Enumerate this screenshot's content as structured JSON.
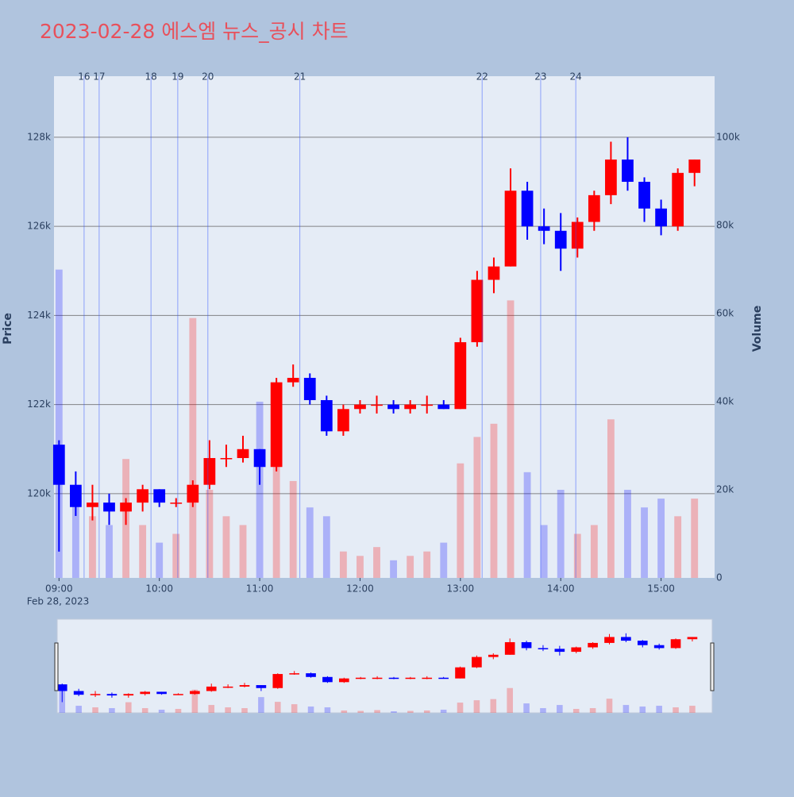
{
  "chart_data": {
    "type": "candlestick",
    "title": "2023-02-28 에스엠 뉴스_공시 차트",
    "y_label": "Price",
    "y2_label": "Volume",
    "x_date_label": "Feb 28, 2023",
    "increasing_color": "#ff0000",
    "decreasing_color": "#0000ff",
    "grid": true,
    "range_slider": true,
    "x": [
      "09:00",
      "09:10",
      "09:20",
      "09:30",
      "09:40",
      "09:50",
      "10:00",
      "10:10",
      "10:20",
      "10:30",
      "10:40",
      "10:50",
      "11:00",
      "11:10",
      "11:20",
      "11:30",
      "11:40",
      "11:50",
      "12:00",
      "12:10",
      "12:20",
      "12:30",
      "12:40",
      "12:50",
      "13:00",
      "13:10",
      "13:20",
      "13:30",
      "13:40",
      "13:50",
      "14:00",
      "14:10",
      "14:20",
      "14:30",
      "14:40",
      "14:50",
      "15:00",
      "15:10",
      "15:20"
    ],
    "open": [
      121100,
      120200,
      119700,
      119800,
      119600,
      119800,
      120100,
      119800,
      119800,
      120200,
      120800,
      120800,
      121000,
      120600,
      122500,
      122600,
      122100,
      121400,
      121900,
      122000,
      122000,
      121900,
      122000,
      122000,
      121900,
      123400,
      124800,
      125100,
      126800,
      126000,
      125900,
      125500,
      126100,
      126700,
      127500,
      127000,
      126400,
      126000,
      127200
    ],
    "high": [
      121200,
      120500,
      120200,
      120000,
      119900,
      120200,
      120100,
      119900,
      120300,
      121200,
      121100,
      121300,
      121000,
      122600,
      122900,
      122700,
      122200,
      122000,
      122100,
      122200,
      122100,
      122100,
      122200,
      122100,
      123500,
      125000,
      125300,
      127300,
      127000,
      126400,
      126300,
      126200,
      126800,
      127900,
      128000,
      127100,
      126600,
      127300,
      127500
    ],
    "low": [
      118700,
      119500,
      119400,
      119300,
      119300,
      119600,
      119700,
      119700,
      119700,
      120100,
      120600,
      120700,
      120200,
      120500,
      122400,
      122000,
      121300,
      121300,
      121800,
      121800,
      121800,
      121800,
      121800,
      121900,
      121900,
      123300,
      124500,
      125100,
      125700,
      125600,
      125000,
      125300,
      125900,
      126500,
      126800,
      126100,
      125800,
      125900,
      126900
    ],
    "close": [
      120200,
      119700,
      119800,
      119600,
      119800,
      120100,
      119800,
      119800,
      120200,
      120800,
      120800,
      121000,
      120600,
      122500,
      122600,
      122100,
      121400,
      121900,
      122000,
      122000,
      121900,
      122000,
      122000,
      121900,
      123400,
      124800,
      125100,
      126800,
      126000,
      125900,
      125500,
      126100,
      126700,
      127500,
      127000,
      126400,
      126000,
      127200,
      127500
    ],
    "volume": [
      70000,
      18000,
      14000,
      12000,
      27000,
      12000,
      8000,
      10000,
      59000,
      20000,
      14000,
      12000,
      40000,
      28000,
      22000,
      16000,
      14000,
      6000,
      5000,
      7000,
      4000,
      5000,
      6000,
      8000,
      26000,
      32000,
      35000,
      63000,
      24000,
      12000,
      20000,
      10000,
      12000,
      36000,
      20000,
      16000,
      18000,
      14000,
      18000
    ],
    "events": [
      {
        "label": "16",
        "x": "09:15"
      },
      {
        "label": "17",
        "x": "09:24"
      },
      {
        "label": "18",
        "x": "09:55"
      },
      {
        "label": "19",
        "x": "10:11"
      },
      {
        "label": "20",
        "x": "10:29"
      },
      {
        "label": "21",
        "x": "11:24"
      },
      {
        "label": "22",
        "x": "13:13"
      },
      {
        "label": "23",
        "x": "13:48"
      },
      {
        "label": "24",
        "x": "14:09"
      }
    ],
    "xlim": [
      "08:57",
      "15:32"
    ],
    "xticks": [
      "09:00",
      "10:00",
      "11:00",
      "12:00",
      "13:00",
      "14:00",
      "15:00"
    ],
    "ylim": [
      118110,
      129370
    ],
    "yticks": [
      {
        "value": 120000,
        "label": "120k"
      },
      {
        "value": 122000,
        "label": "122k"
      },
      {
        "value": 124000,
        "label": "124k"
      },
      {
        "value": 126000,
        "label": "126k"
      },
      {
        "value": 128000,
        "label": "128k"
      }
    ],
    "y2lim": [
      0,
      113900
    ],
    "y2ticks": [
      0,
      {
        "value": 20000,
        "label": "20k"
      },
      {
        "value": 40000,
        "label": "40k"
      },
      {
        "value": 60000,
        "label": "60k"
      },
      {
        "value": 80000,
        "label": "80k"
      },
      {
        "value": 100000,
        "label": "100k"
      }
    ]
  }
}
